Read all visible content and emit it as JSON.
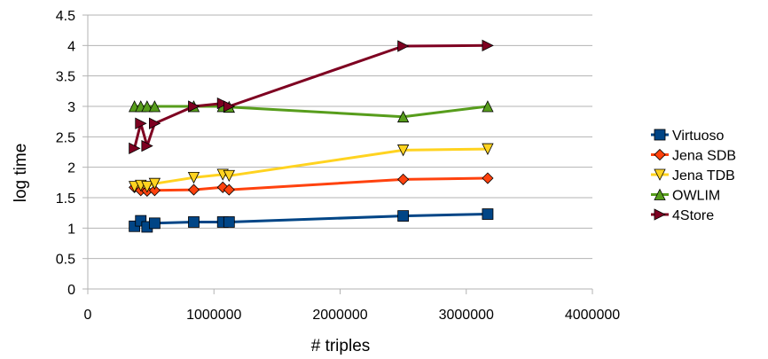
{
  "chart_data": {
    "type": "line",
    "xlabel": "# triples",
    "ylabel": "log time",
    "xlim": [
      0,
      4000000
    ],
    "ylim": [
      0,
      4.5
    ],
    "x_ticks": [
      "0",
      "1000000",
      "2000000",
      "3000000",
      "4000000"
    ],
    "y_ticks": [
      "0",
      "0.5",
      "1",
      "1.5",
      "2",
      "2.5",
      "3",
      "3.5",
      "4",
      "4.5"
    ],
    "grid": "horizontal",
    "legend_position": "right",
    "series": [
      {
        "name": "Virtuoso",
        "color": "#004586",
        "marker": "square",
        "points": [
          [
            370000,
            1.03
          ],
          [
            420000,
            1.12
          ],
          [
            470000,
            1.02
          ],
          [
            530000,
            1.08
          ],
          [
            840000,
            1.1
          ],
          [
            1070000,
            1.1
          ],
          [
            1120000,
            1.1
          ],
          [
            2500000,
            1.2
          ],
          [
            3170000,
            1.23
          ]
        ]
      },
      {
        "name": "Jena SDB",
        "color": "#ff420e",
        "marker": "diamond",
        "points": [
          [
            370000,
            1.67
          ],
          [
            420000,
            1.62
          ],
          [
            470000,
            1.61
          ],
          [
            530000,
            1.62
          ],
          [
            840000,
            1.63
          ],
          [
            1070000,
            1.67
          ],
          [
            1120000,
            1.63
          ],
          [
            2500000,
            1.8
          ],
          [
            3170000,
            1.82
          ]
        ]
      },
      {
        "name": "Jena TDB",
        "color": "#ffd320",
        "marker": "triangle-down",
        "points": [
          [
            370000,
            1.68
          ],
          [
            420000,
            1.7
          ],
          [
            470000,
            1.68
          ],
          [
            530000,
            1.73
          ],
          [
            840000,
            1.83
          ],
          [
            1070000,
            1.88
          ],
          [
            1120000,
            1.86
          ],
          [
            2500000,
            2.28
          ],
          [
            3170000,
            2.3
          ]
        ]
      },
      {
        "name": "OWLIM",
        "color": "#579d1c",
        "marker": "triangle-up",
        "points": [
          [
            370000,
            3.0
          ],
          [
            420000,
            3.0
          ],
          [
            470000,
            3.0
          ],
          [
            530000,
            3.0
          ],
          [
            840000,
            3.0
          ],
          [
            1070000,
            3.0
          ],
          [
            1120000,
            2.99
          ],
          [
            2500000,
            2.83
          ],
          [
            3170000,
            3.0
          ]
        ]
      },
      {
        "name": "4Store",
        "color": "#7e0021",
        "marker": "triangle-right",
        "points": [
          [
            370000,
            2.31
          ],
          [
            420000,
            2.72
          ],
          [
            470000,
            2.35
          ],
          [
            530000,
            2.72
          ],
          [
            840000,
            3.0
          ],
          [
            1070000,
            3.05
          ],
          [
            1120000,
            3.0
          ],
          [
            2500000,
            3.99
          ],
          [
            3170000,
            4.0
          ]
        ]
      }
    ]
  }
}
